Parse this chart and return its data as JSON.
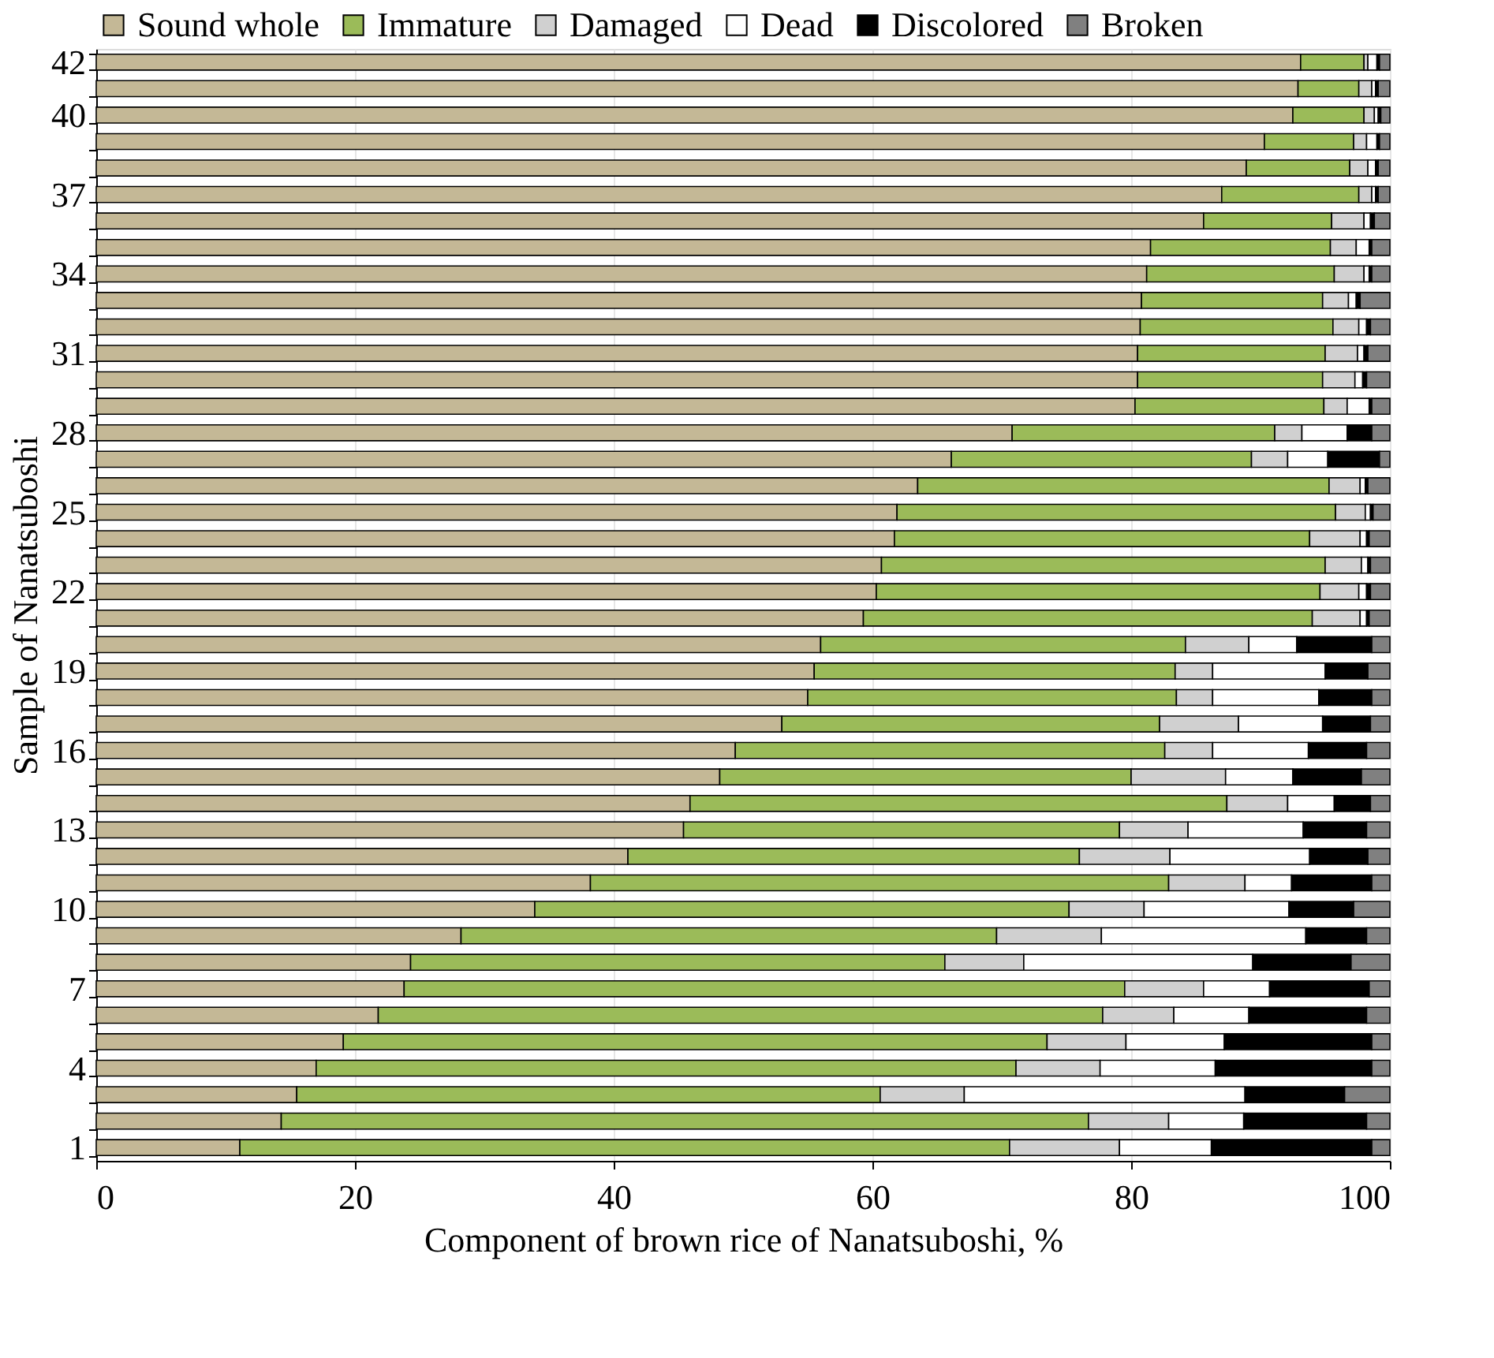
{
  "chart_data": {
    "type": "bar",
    "orientation": "horizontal",
    "stacked": true,
    "xlabel": "Component of brown rice of Nanatsuboshi, %",
    "ylabel": "Sample of  Nanatsuboshi",
    "categories": [
      "42",
      null,
      "40",
      null,
      null,
      "37",
      null,
      null,
      "34",
      null,
      null,
      "31",
      null,
      null,
      "28",
      null,
      null,
      "25",
      null,
      null,
      "22",
      null,
      null,
      "19",
      null,
      null,
      "16",
      null,
      null,
      "13",
      null,
      null,
      "10",
      null,
      null,
      "7",
      null,
      null,
      "4",
      null,
      null,
      "1"
    ],
    "xlim": [
      0,
      100
    ],
    "xticks": [
      0,
      20,
      40,
      60,
      80,
      100
    ],
    "grid": "x",
    "legend": "top",
    "series": [
      {
        "name": "Sound whole",
        "color": "#c4b896",
        "values": [
          93.1,
          92.9,
          92.5,
          90.3,
          88.9,
          87.0,
          85.6,
          81.5,
          81.2,
          80.8,
          80.7,
          80.5,
          80.5,
          80.3,
          70.8,
          66.1,
          63.5,
          61.9,
          61.7,
          60.7,
          60.3,
          59.3,
          56.0,
          55.5,
          55.0,
          53.0,
          49.4,
          48.2,
          45.9,
          45.4,
          41.1,
          38.2,
          33.9,
          28.2,
          24.3,
          23.8,
          21.8,
          19.1,
          17.0,
          15.5,
          14.3,
          11.1
        ]
      },
      {
        "name": "Immature",
        "color": "#9bbb59",
        "values": [
          4.9,
          4.7,
          5.5,
          6.9,
          8.0,
          10.6,
          9.9,
          13.9,
          14.5,
          14.0,
          14.9,
          14.5,
          14.3,
          14.6,
          20.3,
          23.2,
          31.8,
          33.9,
          32.1,
          34.3,
          34.3,
          34.7,
          28.2,
          27.9,
          28.5,
          29.2,
          33.2,
          31.8,
          41.5,
          33.7,
          34.9,
          44.7,
          41.3,
          41.4,
          41.3,
          55.7,
          56.0,
          54.4,
          54.1,
          45.1,
          62.4,
          59.5
        ]
      },
      {
        "name": "Damaged",
        "color": "#d0d0d0",
        "values": [
          0.3,
          1.0,
          0.8,
          1.0,
          1.4,
          1.0,
          2.5,
          2.0,
          2.3,
          2.0,
          2.0,
          2.5,
          2.5,
          1.8,
          2.1,
          2.8,
          2.4,
          2.3,
          3.9,
          2.8,
          3.0,
          3.7,
          4.9,
          2.9,
          2.8,
          6.1,
          3.7,
          7.3,
          4.7,
          5.3,
          7.0,
          5.9,
          5.8,
          8.1,
          6.1,
          6.1,
          5.5,
          6.1,
          6.5,
          6.5,
          6.2,
          8.5
        ]
      },
      {
        "name": "Dead",
        "color": "#ffffff",
        "values": [
          0.7,
          0.3,
          0.3,
          0.8,
          0.6,
          0.3,
          0.5,
          1.0,
          0.4,
          0.6,
          0.6,
          0.5,
          0.6,
          1.7,
          3.5,
          3.1,
          0.4,
          0.4,
          0.5,
          0.5,
          0.6,
          0.5,
          3.7,
          8.7,
          8.2,
          6.5,
          7.4,
          5.2,
          3.6,
          8.9,
          10.8,
          3.6,
          11.2,
          15.8,
          17.7,
          5.1,
          5.8,
          7.6,
          8.9,
          21.7,
          5.8,
          7.1
        ]
      },
      {
        "name": "Discolored",
        "color": "#000000",
        "values": [
          0.2,
          0.2,
          0.2,
          0.2,
          0.2,
          0.2,
          0.3,
          0.2,
          0.2,
          0.3,
          0.3,
          0.3,
          0.3,
          0.2,
          1.9,
          4.0,
          0.2,
          0.2,
          0.2,
          0.2,
          0.3,
          0.2,
          5.8,
          3.3,
          4.1,
          3.7,
          4.5,
          5.3,
          2.8,
          4.9,
          4.5,
          6.2,
          5.0,
          4.7,
          7.6,
          7.7,
          9.1,
          11.4,
          12.1,
          7.7,
          9.5,
          12.4
        ]
      },
      {
        "name": "Broken",
        "color": "#808080",
        "values": [
          0.8,
          0.9,
          0.7,
          0.8,
          0.9,
          0.9,
          1.2,
          1.4,
          1.4,
          2.3,
          1.5,
          1.7,
          1.8,
          1.4,
          1.4,
          0.8,
          1.7,
          1.3,
          1.6,
          1.5,
          1.5,
          1.6,
          1.4,
          1.7,
          1.4,
          1.5,
          1.8,
          2.2,
          1.5,
          1.8,
          1.7,
          1.4,
          2.8,
          1.8,
          3.0,
          1.6,
          1.8,
          1.4,
          1.4,
          3.5,
          1.8,
          1.4
        ]
      }
    ]
  }
}
